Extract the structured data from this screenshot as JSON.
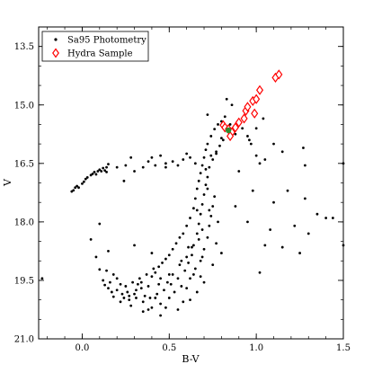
{
  "chart_data": {
    "type": "scatter",
    "title": "",
    "xlabel": "B-V",
    "ylabel": "V",
    "xlim": [
      -0.25,
      1.5
    ],
    "ylim": [
      21.0,
      13.0
    ],
    "y_inverted": true,
    "x_ticks": [
      {
        "value": 0.0,
        "label": "0.0"
      },
      {
        "value": 0.5,
        "label": "0.5"
      },
      {
        "value": 1.0,
        "label": "1.0"
      },
      {
        "value": 1.5,
        "label": "1.5"
      }
    ],
    "y_ticks": [
      {
        "value": 13.5,
        "label": "13.5"
      },
      {
        "value": 15.0,
        "label": "15.0"
      },
      {
        "value": 16.5,
        "label": "16.5"
      },
      {
        "value": 18.0,
        "label": "18.0"
      },
      {
        "value": 19.5,
        "label": "19.5"
      },
      {
        "value": 21.0,
        "label": "21.0"
      }
    ],
    "grid": false,
    "legend_position": "top-left",
    "series": [
      {
        "name": "Sa95 Photometry",
        "marker": "dot",
        "color": "#000000",
        "points": [
          [
            -0.23,
            19.45
          ],
          [
            -0.06,
            17.22
          ],
          [
            -0.05,
            17.19
          ],
          [
            -0.04,
            17.12
          ],
          [
            -0.03,
            17.08
          ],
          [
            -0.02,
            17.12
          ],
          [
            0.0,
            17.02
          ],
          [
            0.01,
            16.97
          ],
          [
            0.02,
            16.9
          ],
          [
            0.03,
            16.86
          ],
          [
            0.05,
            16.8
          ],
          [
            0.06,
            16.77
          ],
          [
            0.07,
            16.72
          ],
          [
            0.08,
            16.78
          ],
          [
            0.09,
            16.7
          ],
          [
            0.1,
            16.66
          ],
          [
            0.11,
            16.7
          ],
          [
            0.12,
            16.62
          ],
          [
            0.13,
            16.68
          ],
          [
            0.14,
            16.6
          ],
          [
            0.14,
            16.72
          ],
          [
            0.15,
            16.52
          ],
          [
            0.1,
            19.22
          ],
          [
            0.12,
            19.5
          ],
          [
            0.13,
            19.62
          ],
          [
            0.15,
            19.7
          ],
          [
            0.17,
            19.8
          ],
          [
            0.18,
            19.92
          ],
          [
            0.2,
            19.75
          ],
          [
            0.22,
            20.05
          ],
          [
            0.24,
            19.95
          ],
          [
            0.26,
            19.8
          ],
          [
            0.28,
            20.15
          ],
          [
            0.3,
            19.85
          ],
          [
            0.32,
            19.6
          ],
          [
            0.34,
            19.7
          ],
          [
            0.36,
            19.9
          ],
          [
            0.38,
            19.65
          ],
          [
            0.4,
            19.4
          ],
          [
            0.42,
            19.3
          ],
          [
            0.44,
            19.15
          ],
          [
            0.46,
            19.05
          ],
          [
            0.48,
            18.95
          ],
          [
            0.5,
            18.85
          ],
          [
            0.52,
            18.7
          ],
          [
            0.54,
            18.55
          ],
          [
            0.56,
            18.4
          ],
          [
            0.58,
            18.3
          ],
          [
            0.6,
            18.1
          ],
          [
            0.62,
            17.9
          ],
          [
            0.64,
            17.65
          ],
          [
            0.65,
            17.4
          ],
          [
            0.66,
            17.15
          ],
          [
            0.67,
            16.95
          ],
          [
            0.68,
            16.75
          ],
          [
            0.69,
            16.55
          ],
          [
            0.7,
            16.35
          ],
          [
            0.71,
            16.15
          ],
          [
            0.72,
            16.0
          ],
          [
            0.74,
            15.8
          ],
          [
            0.76,
            15.62
          ],
          [
            0.78,
            15.5
          ],
          [
            0.8,
            15.42
          ],
          [
            0.23,
            19.85
          ],
          [
            0.27,
            19.9
          ],
          [
            0.31,
            19.95
          ],
          [
            0.35,
            20.05
          ],
          [
            0.39,
            19.95
          ],
          [
            0.43,
            19.85
          ],
          [
            0.47,
            19.75
          ],
          [
            0.51,
            19.6
          ],
          [
            0.55,
            19.45
          ],
          [
            0.59,
            19.25
          ],
          [
            0.61,
            19.05
          ],
          [
            0.63,
            18.85
          ],
          [
            0.64,
            18.6
          ],
          [
            0.66,
            18.3
          ],
          [
            0.67,
            18.05
          ],
          [
            0.68,
            17.8
          ],
          [
            0.69,
            17.55
          ],
          [
            0.7,
            17.3
          ],
          [
            0.71,
            17.05
          ],
          [
            0.72,
            16.85
          ],
          [
            0.73,
            16.6
          ],
          [
            0.75,
            16.4
          ],
          [
            0.77,
            16.2
          ],
          [
            0.79,
            16.05
          ],
          [
            0.81,
            15.9
          ],
          [
            0.35,
            20.3
          ],
          [
            0.4,
            20.2
          ],
          [
            0.45,
            20.1
          ],
          [
            0.5,
            19.95
          ],
          [
            0.53,
            19.8
          ],
          [
            0.57,
            19.65
          ],
          [
            0.62,
            19.45
          ],
          [
            0.65,
            19.2
          ],
          [
            0.68,
            19.0
          ],
          [
            0.7,
            18.7
          ],
          [
            0.72,
            18.4
          ],
          [
            0.73,
            18.1
          ],
          [
            0.74,
            17.85
          ],
          [
            0.75,
            17.6
          ],
          [
            0.29,
            19.55
          ],
          [
            0.33,
            19.45
          ],
          [
            0.37,
            19.35
          ],
          [
            0.41,
            19.2
          ],
          [
            0.45,
            19.45
          ],
          [
            0.49,
            19.55
          ],
          [
            0.52,
            19.35
          ],
          [
            0.56,
            19.1
          ],
          [
            0.6,
            18.9
          ],
          [
            0.63,
            18.65
          ],
          [
            0.18,
            19.35
          ],
          [
            0.2,
            19.45
          ],
          [
            0.25,
            19.65
          ],
          [
            0.45,
            20.4
          ],
          [
            0.55,
            20.25
          ],
          [
            0.62,
            20.0
          ],
          [
            0.66,
            19.8
          ],
          [
            0.7,
            19.55
          ],
          [
            0.14,
            19.25
          ],
          [
            0.05,
            18.45
          ],
          [
            0.08,
            18.9
          ],
          [
            0.1,
            18.05
          ],
          [
            0.15,
            18.75
          ],
          [
            0.3,
            18.6
          ],
          [
            0.4,
            18.8
          ],
          [
            0.35,
            16.6
          ],
          [
            0.42,
            16.55
          ],
          [
            0.48,
            16.5
          ],
          [
            0.52,
            16.45
          ],
          [
            0.58,
            16.4
          ],
          [
            0.62,
            16.35
          ],
          [
            0.25,
            16.55
          ],
          [
            0.3,
            16.7
          ],
          [
            0.38,
            16.45
          ],
          [
            0.45,
            16.3
          ],
          [
            0.48,
            16.6
          ],
          [
            0.55,
            16.55
          ],
          [
            0.6,
            16.25
          ],
          [
            0.65,
            16.5
          ],
          [
            0.2,
            16.6
          ],
          [
            0.28,
            16.35
          ],
          [
            0.4,
            16.35
          ],
          [
            0.24,
            16.95
          ],
          [
            0.83,
            14.85
          ],
          [
            0.86,
            15.0
          ],
          [
            0.9,
            15.5
          ],
          [
            0.92,
            15.6
          ],
          [
            0.95,
            15.8
          ],
          [
            0.96,
            15.9
          ],
          [
            0.97,
            16.0
          ],
          [
            1.0,
            16.3
          ],
          [
            1.02,
            16.5
          ],
          [
            1.0,
            15.6
          ],
          [
            1.04,
            15.35
          ],
          [
            1.05,
            16.4
          ],
          [
            1.1,
            16.0
          ],
          [
            1.15,
            16.2
          ],
          [
            0.8,
            15.85
          ],
          [
            0.82,
            15.3
          ],
          [
            0.85,
            15.5
          ],
          [
            0.88,
            15.75
          ],
          [
            0.72,
            15.25
          ],
          [
            0.77,
            16.25
          ],
          [
            1.27,
            16.1
          ],
          [
            1.28,
            16.55
          ],
          [
            1.28,
            17.4
          ],
          [
            1.25,
            18.8
          ],
          [
            1.3,
            18.3
          ],
          [
            1.35,
            17.8
          ],
          [
            1.4,
            17.9
          ],
          [
            1.44,
            17.9
          ],
          [
            1.5,
            16.5
          ],
          [
            1.5,
            18.6
          ],
          [
            1.02,
            19.3
          ],
          [
            1.05,
            18.6
          ],
          [
            0.78,
            18.0
          ],
          [
            0.8,
            18.8
          ],
          [
            0.9,
            16.7
          ],
          [
            1.1,
            17.5
          ],
          [
            1.08,
            18.2
          ],
          [
            1.18,
            17.2
          ],
          [
            1.22,
            18.1
          ],
          [
            0.98,
            17.2
          ],
          [
            0.95,
            18.0
          ],
          [
            0.88,
            17.6
          ],
          [
            1.15,
            18.65
          ],
          [
            0.6,
            19.7
          ],
          [
            0.58,
            20.05
          ],
          [
            0.48,
            20.2
          ],
          [
            0.68,
            19.4
          ],
          [
            0.75,
            19.1
          ],
          [
            0.77,
            18.55
          ],
          [
            0.76,
            17.35
          ],
          [
            0.66,
            17.7
          ],
          [
            0.71,
            16.65
          ],
          [
            0.74,
            16.3
          ],
          [
            0.69,
            18.9
          ],
          [
            0.64,
            19.35
          ],
          [
            0.42,
            19.95
          ],
          [
            0.38,
            20.25
          ],
          [
            0.27,
            20.0
          ],
          [
            0.22,
            19.6
          ],
          [
            0.16,
            19.55
          ],
          [
            0.31,
            19.75
          ],
          [
            0.34,
            19.55
          ],
          [
            0.44,
            19.6
          ],
          [
            0.5,
            19.35
          ],
          [
            0.57,
            19.0
          ],
          [
            0.61,
            18.65
          ],
          [
            0.67,
            18.45
          ],
          [
            0.69,
            18.2
          ],
          [
            0.73,
            17.7
          ],
          [
            0.72,
            17.15
          ]
        ]
      },
      {
        "name": "Hydra Sample",
        "marker": "diamond",
        "color": "#ff0000",
        "points": [
          [
            0.81,
            15.52
          ],
          [
            0.82,
            15.58
          ],
          [
            0.84,
            15.62
          ],
          [
            0.86,
            15.7
          ],
          [
            0.88,
            15.58
          ],
          [
            0.9,
            15.45
          ],
          [
            0.93,
            15.35
          ],
          [
            0.94,
            15.15
          ],
          [
            0.95,
            15.05
          ],
          [
            0.98,
            14.9
          ],
          [
            1.0,
            14.85
          ],
          [
            1.02,
            14.62
          ],
          [
            1.11,
            14.3
          ],
          [
            1.13,
            14.22
          ],
          [
            0.99,
            15.22
          ],
          [
            0.85,
            15.8
          ]
        ]
      },
      {
        "name": "",
        "marker": "dot",
        "color": "#2e8b2e",
        "points": [
          [
            0.84,
            15.65
          ]
        ]
      }
    ]
  },
  "legend": {
    "items": [
      {
        "label": "Sa95 Photometry",
        "marker": "dot"
      },
      {
        "label": "Hydra Sample",
        "marker": "diamond"
      }
    ]
  }
}
